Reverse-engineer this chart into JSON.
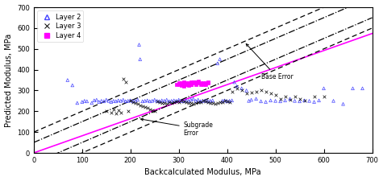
{
  "xlim": [
    0,
    700
  ],
  "ylim": [
    0,
    700
  ],
  "xlabel": "Backcalculated Modulus, MPa",
  "ylabel": "Predicted Modulus, MPa",
  "background_color": "#ffffff",
  "line_color_main": "#ff00ff",
  "line_color_dash": "#000000",
  "layer2_color": "#4444ff",
  "layer3_color": "#000000",
  "layer4_color": "#ff00ff",
  "main_line_slope": 0.82,
  "main_line_intercept": 0,
  "base_upper_slope": 1.0,
  "base_upper_intercept": 100,
  "base_lower_slope": 1.0,
  "base_lower_intercept": -100,
  "subgrade_upper_slope": 1.0,
  "subgrade_upper_intercept": 50,
  "subgrade_lower_slope": 1.0,
  "subgrade_lower_intercept": -50,
  "layer2_data": [
    [
      70,
      350
    ],
    [
      80,
      325
    ],
    [
      90,
      240
    ],
    [
      100,
      245
    ],
    [
      105,
      250
    ],
    [
      110,
      248
    ],
    [
      120,
      240
    ],
    [
      125,
      252
    ],
    [
      130,
      255
    ],
    [
      135,
      245
    ],
    [
      140,
      250
    ],
    [
      145,
      248
    ],
    [
      150,
      255
    ],
    [
      155,
      250
    ],
    [
      160,
      245
    ],
    [
      165,
      250
    ],
    [
      170,
      248
    ],
    [
      175,
      252
    ],
    [
      180,
      250
    ],
    [
      185,
      255
    ],
    [
      190,
      248
    ],
    [
      195,
      250
    ],
    [
      200,
      252
    ],
    [
      205,
      248
    ],
    [
      210,
      250
    ],
    [
      215,
      255
    ],
    [
      218,
      520
    ],
    [
      220,
      450
    ],
    [
      225,
      248
    ],
    [
      230,
      250
    ],
    [
      235,
      252
    ],
    [
      240,
      248
    ],
    [
      245,
      250
    ],
    [
      250,
      255
    ],
    [
      255,
      250
    ],
    [
      260,
      248
    ],
    [
      265,
      252
    ],
    [
      270,
      250
    ],
    [
      275,
      255
    ],
    [
      280,
      248
    ],
    [
      285,
      250
    ],
    [
      290,
      252
    ],
    [
      295,
      250
    ],
    [
      300,
      255
    ],
    [
      305,
      250
    ],
    [
      310,
      248
    ],
    [
      315,
      252
    ],
    [
      320,
      250
    ],
    [
      325,
      255
    ],
    [
      330,
      260
    ],
    [
      335,
      250
    ],
    [
      340,
      255
    ],
    [
      345,
      248
    ],
    [
      350,
      250
    ],
    [
      355,
      252
    ],
    [
      360,
      248
    ],
    [
      365,
      250
    ],
    [
      370,
      252
    ],
    [
      380,
      430
    ],
    [
      385,
      450
    ],
    [
      390,
      250
    ],
    [
      395,
      252
    ],
    [
      400,
      248
    ],
    [
      405,
      250
    ],
    [
      410,
      252
    ],
    [
      415,
      340
    ],
    [
      420,
      320
    ],
    [
      430,
      310
    ],
    [
      440,
      300
    ],
    [
      445,
      250
    ],
    [
      450,
      255
    ],
    [
      460,
      260
    ],
    [
      470,
      248
    ],
    [
      480,
      245
    ],
    [
      490,
      252
    ],
    [
      500,
      250
    ],
    [
      510,
      248
    ],
    [
      520,
      252
    ],
    [
      530,
      260
    ],
    [
      540,
      250
    ],
    [
      550,
      248
    ],
    [
      560,
      252
    ],
    [
      570,
      250
    ],
    [
      580,
      245
    ],
    [
      590,
      252
    ],
    [
      600,
      310
    ],
    [
      620,
      250
    ],
    [
      640,
      235
    ],
    [
      660,
      310
    ],
    [
      680,
      310
    ]
  ],
  "layer3_data": [
    [
      150,
      200
    ],
    [
      160,
      195
    ],
    [
      165,
      210
    ],
    [
      170,
      190
    ],
    [
      175,
      205
    ],
    [
      180,
      195
    ],
    [
      185,
      355
    ],
    [
      190,
      340
    ],
    [
      195,
      200
    ],
    [
      200,
      250
    ],
    [
      205,
      245
    ],
    [
      210,
      240
    ],
    [
      215,
      235
    ],
    [
      220,
      230
    ],
    [
      225,
      225
    ],
    [
      230,
      220
    ],
    [
      235,
      215
    ],
    [
      240,
      210
    ],
    [
      245,
      205
    ],
    [
      250,
      200
    ],
    [
      255,
      248
    ],
    [
      260,
      245
    ],
    [
      265,
      240
    ],
    [
      270,
      238
    ],
    [
      275,
      235
    ],
    [
      280,
      245
    ],
    [
      285,
      240
    ],
    [
      290,
      242
    ],
    [
      295,
      248
    ],
    [
      300,
      245
    ],
    [
      305,
      250
    ],
    [
      310,
      248
    ],
    [
      315,
      245
    ],
    [
      320,
      240
    ],
    [
      325,
      238
    ],
    [
      330,
      235
    ],
    [
      335,
      240
    ],
    [
      340,
      242
    ],
    [
      345,
      245
    ],
    [
      350,
      250
    ],
    [
      355,
      248
    ],
    [
      360,
      245
    ],
    [
      365,
      240
    ],
    [
      370,
      238
    ],
    [
      375,
      235
    ],
    [
      380,
      240
    ],
    [
      385,
      242
    ],
    [
      390,
      245
    ],
    [
      395,
      250
    ],
    [
      400,
      248
    ],
    [
      405,
      245
    ],
    [
      410,
      295
    ],
    [
      420,
      310
    ],
    [
      430,
      300
    ],
    [
      440,
      285
    ],
    [
      450,
      290
    ],
    [
      460,
      295
    ],
    [
      470,
      300
    ],
    [
      480,
      295
    ],
    [
      490,
      285
    ],
    [
      500,
      280
    ],
    [
      510,
      260
    ],
    [
      520,
      270
    ],
    [
      530,
      255
    ],
    [
      540,
      270
    ],
    [
      550,
      260
    ],
    [
      560,
      250
    ],
    [
      580,
      270
    ],
    [
      600,
      270
    ]
  ],
  "layer4_data": [
    [
      295,
      330
    ],
    [
      300,
      335
    ],
    [
      305,
      330
    ],
    [
      310,
      335
    ],
    [
      315,
      330
    ],
    [
      320,
      335
    ],
    [
      325,
      330
    ],
    [
      330,
      340
    ],
    [
      335,
      330
    ],
    [
      340,
      335
    ],
    [
      345,
      330
    ],
    [
      350,
      335
    ],
    [
      355,
      330
    ],
    [
      360,
      335
    ],
    [
      305,
      325
    ],
    [
      310,
      320
    ],
    [
      315,
      335
    ],
    [
      320,
      330
    ],
    [
      325,
      340
    ],
    [
      330,
      335
    ],
    [
      335,
      340
    ],
    [
      340,
      345
    ],
    [
      345,
      335
    ],
    [
      350,
      330
    ],
    [
      355,
      335
    ],
    [
      360,
      340
    ],
    [
      300,
      330
    ],
    [
      305,
      335
    ],
    [
      310,
      340
    ],
    [
      315,
      330
    ],
    [
      320,
      325
    ],
    [
      325,
      330
    ],
    [
      330,
      340
    ],
    [
      335,
      335
    ]
  ]
}
